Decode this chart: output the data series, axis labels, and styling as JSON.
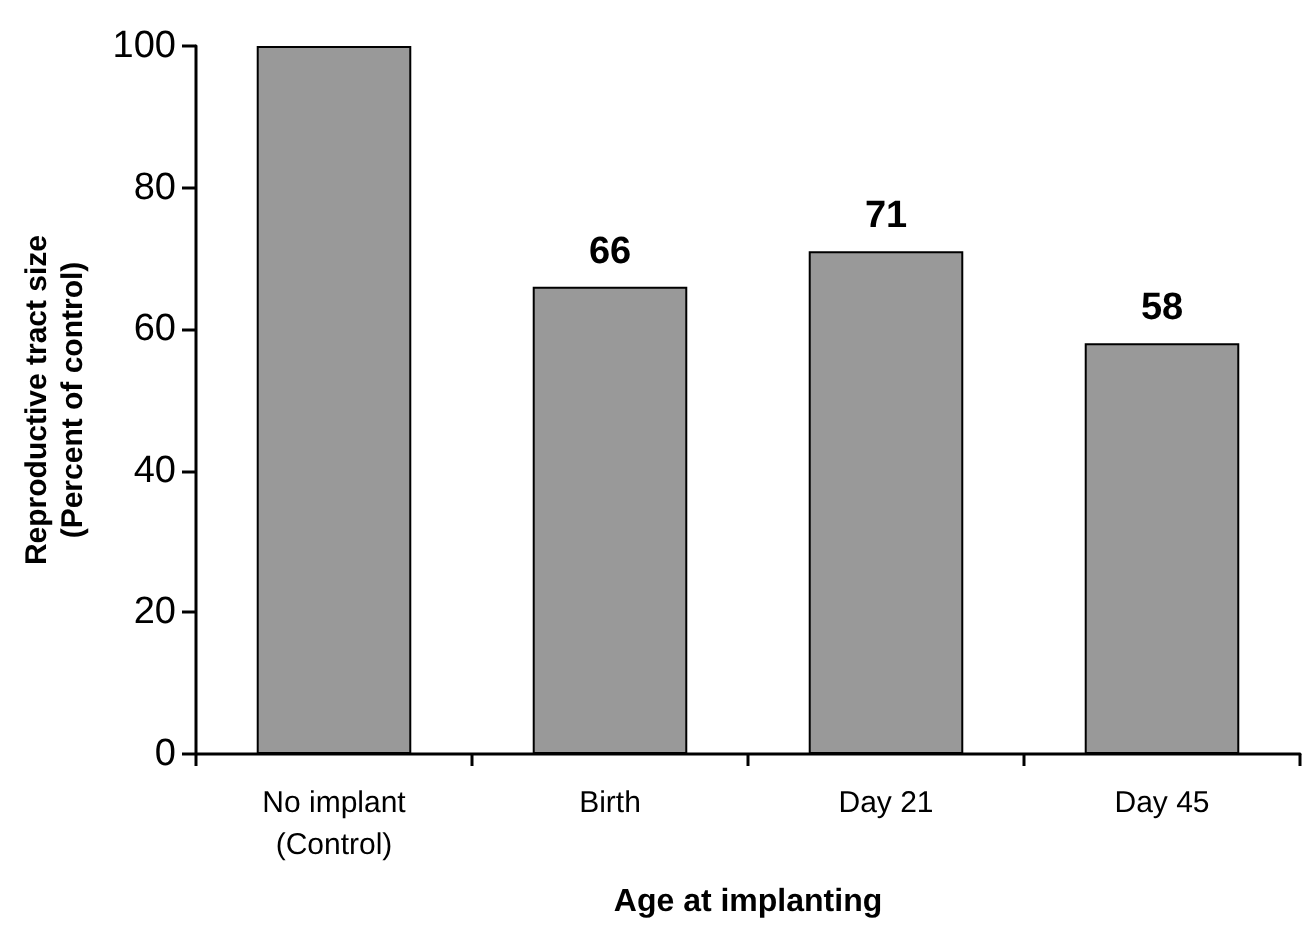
{
  "chart_data": {
    "type": "bar",
    "xlabel": "Age at implanting",
    "ylabel": "Reproductive tract size\n(Percent of control)",
    "categories": [
      "No implant\n(Control)",
      "Birth",
      "Day 21",
      "Day 45"
    ],
    "values": [
      100,
      66,
      71,
      58
    ],
    "value_labels": [
      null,
      "66",
      "71",
      "58"
    ],
    "color": "#999999",
    "ylim": [
      0,
      100
    ],
    "yticks": [
      0,
      20,
      40,
      60,
      80,
      100
    ],
    "grid": false
  }
}
